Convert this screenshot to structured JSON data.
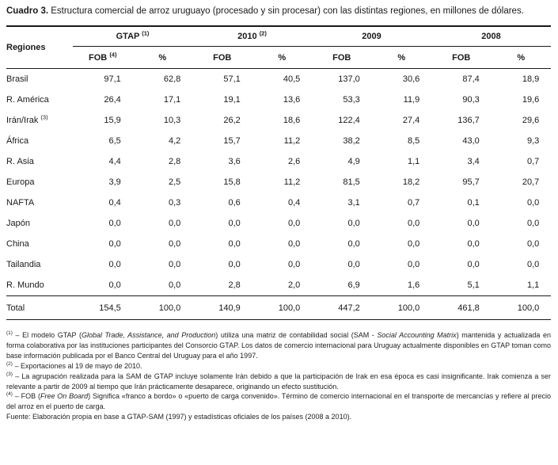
{
  "title": {
    "label": "Cuadro 3.",
    "text": " Estructura comercial de arroz uruguayo (procesado y sin procesar) con las distintas regiones, en millones de dólares."
  },
  "table": {
    "region_header": "Regiones",
    "groups": [
      {
        "label": "GTAP",
        "sup": "(1)",
        "fob": "FOB",
        "fob_sup": "(4)",
        "pct": "%"
      },
      {
        "label": "2010",
        "sup": "(2)",
        "fob": "FOB",
        "fob_sup": "",
        "pct": "%"
      },
      {
        "label": "2009",
        "sup": "",
        "fob": "FOB",
        "fob_sup": "",
        "pct": "%"
      },
      {
        "label": "2008",
        "sup": "",
        "fob": "FOB",
        "fob_sup": "",
        "pct": "%"
      }
    ],
    "rows": [
      {
        "region": "Brasil",
        "sup": "",
        "values": [
          "97,1",
          "62,8",
          "57,1",
          "40,5",
          "137,0",
          "30,6",
          "87,4",
          "18,9"
        ]
      },
      {
        "region": "R. América",
        "sup": "",
        "values": [
          "26,4",
          "17,1",
          "19,1",
          "13,6",
          "53,3",
          "11,9",
          "90,3",
          "19,6"
        ]
      },
      {
        "region": "Irán/Irak",
        "sup": "(3)",
        "values": [
          "15,9",
          "10,3",
          "26,2",
          "18,6",
          "122,4",
          "27,4",
          "136,7",
          "29,6"
        ]
      },
      {
        "region": "África",
        "sup": "",
        "values": [
          "6,5",
          "4,2",
          "15,7",
          "11,2",
          "38,2",
          "8,5",
          "43,0",
          "9,3"
        ]
      },
      {
        "region": "R. Asia",
        "sup": "",
        "values": [
          "4,4",
          "2,8",
          "3,6",
          "2,6",
          "4,9",
          "1,1",
          "3,4",
          "0,7"
        ]
      },
      {
        "region": "Europa",
        "sup": "",
        "values": [
          "3,9",
          "2,5",
          "15,8",
          "11,2",
          "81,5",
          "18,2",
          "95,7",
          "20,7"
        ]
      },
      {
        "region": "NAFTA",
        "sup": "",
        "values": [
          "0,4",
          "0,3",
          "0,6",
          "0,4",
          "3,1",
          "0,7",
          "0,1",
          "0,0"
        ]
      },
      {
        "region": "Japón",
        "sup": "",
        "values": [
          "0,0",
          "0,0",
          "0,0",
          "0,0",
          "0,0",
          "0,0",
          "0,0",
          "0,0"
        ]
      },
      {
        "region": "China",
        "sup": "",
        "values": [
          "0,0",
          "0,0",
          "0,0",
          "0,0",
          "0,0",
          "0,0",
          "0,0",
          "0,0"
        ]
      },
      {
        "region": "Tailandia",
        "sup": "",
        "values": [
          "0,0",
          "0,0",
          "0,0",
          "0,0",
          "0,0",
          "0,0",
          "0,0",
          "0,0"
        ]
      },
      {
        "region": "R. Mundo",
        "sup": "",
        "values": [
          "0,0",
          "0,0",
          "2,8",
          "2,0",
          "6,9",
          "1,6",
          "5,1",
          "1,1"
        ]
      }
    ],
    "total_row": {
      "region": "Total",
      "sup": "",
      "values": [
        "154,5",
        "100,0",
        "140,9",
        "100,0",
        "447,2",
        "100,0",
        "461,8",
        "100,0"
      ]
    }
  },
  "footnotes": [
    {
      "sup": "(1)",
      "parts": [
        {
          "text": " – El modelo GTAP ("
        },
        {
          "text": "Global Trade, Assistance, and Production",
          "italic": true
        },
        {
          "text": ") utiliza una matriz de contabilidad social (SAM - "
        },
        {
          "text": "Social Accounting Matrix",
          "italic": true
        },
        {
          "text": ") mantenida y actualizada en forma colaborativa por las instituciones participantes del Consorcio GTAP. Los datos de comercio internacional para Uruguay actualmente disponibles en GTAP toman como base información publicada por el Banco Central del Uruguay para el año 1997."
        }
      ]
    },
    {
      "sup": "(2)",
      "parts": [
        {
          "text": " – Exportaciones al 19 de mayo de 2010."
        }
      ]
    },
    {
      "sup": "(3)",
      "parts": [
        {
          "text": " – La agrupación realizada para la SAM de GTAP incluye solamente Irán debido a que la participación de Irak en esa época es casi insignificante. Irak comienza a ser relevante a partir de 2009 al tiempo que Irán prácticamente desaparece, originando un efecto sustitución."
        }
      ]
    },
    {
      "sup": "(4)",
      "parts": [
        {
          "text": " – FOB ("
        },
        {
          "text": "Free On Board",
          "italic": true
        },
        {
          "text": ") Significa «franco a bordo» o «puerto de carga convenido». Término de comercio internacional en el transporte de mercancías y refiere al precio del arroz en el puerto de carga."
        }
      ]
    }
  ],
  "source": "Fuente: Elaboración propia en base a GTAP-SAM (1997) y estadísticas oficiales de los países (2008 a 2010)."
}
